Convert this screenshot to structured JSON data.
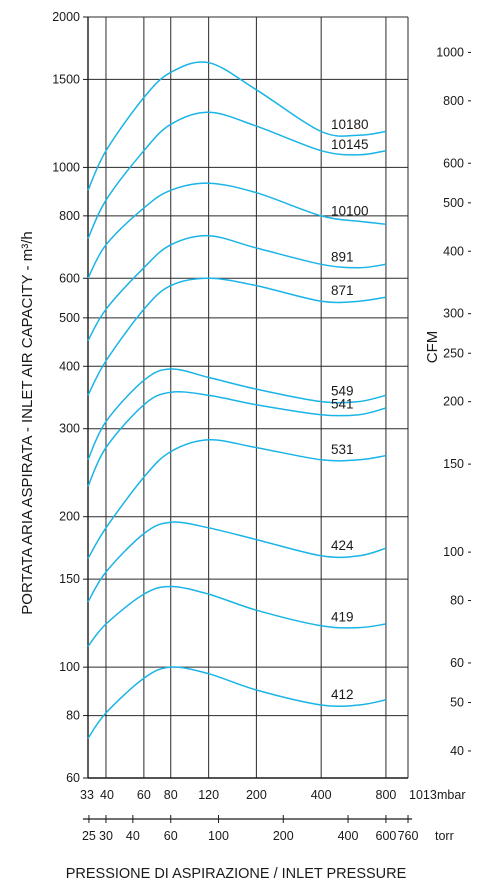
{
  "chart_data": {
    "type": "line",
    "title": "",
    "xlabel": "PRESSIONE DI ASPIRAZIONE / INLET PRESSURE",
    "ylabel": "PORTATA ARIA ASPIRATA - INLET AIR CAPACITY - m³/h",
    "ylabel_right": "CFM",
    "x_scale": "log",
    "y_scale": "log",
    "xlim_mbar": [
      33,
      1013
    ],
    "ylim_m3h": [
      60,
      2000
    ],
    "grid": true,
    "x_axis_mbar": {
      "unit_label": "mbar",
      "ticks": [
        {
          "value": 33,
          "label": "33"
        },
        {
          "value": 40,
          "label": "40"
        },
        {
          "value": 60,
          "label": "60"
        },
        {
          "value": 80,
          "label": "80"
        },
        {
          "value": 120,
          "label": "120"
        },
        {
          "value": 200,
          "label": "200"
        },
        {
          "value": 400,
          "label": "400"
        },
        {
          "value": 800,
          "label": "800"
        },
        {
          "value": 1013,
          "label": "1013"
        }
      ]
    },
    "x_axis_torr": {
      "unit_label": "torr",
      "ticks": [
        {
          "value": 25,
          "label": "25"
        },
        {
          "value": 30,
          "label": "30"
        },
        {
          "value": 40,
          "label": "40"
        },
        {
          "value": 60,
          "label": "60"
        },
        {
          "value": 100,
          "label": "100"
        },
        {
          "value": 200,
          "label": "200"
        },
        {
          "value": 400,
          "label": "400"
        },
        {
          "value": 600,
          "label": "600"
        },
        {
          "value": 760,
          "label": "760"
        }
      ]
    },
    "y_axis_m3h": {
      "ticks": [
        {
          "value": 60,
          "label": "60"
        },
        {
          "value": 80,
          "label": "80"
        },
        {
          "value": 100,
          "label": "100"
        },
        {
          "value": 150,
          "label": "150"
        },
        {
          "value": 200,
          "label": "200"
        },
        {
          "value": 300,
          "label": "300"
        },
        {
          "value": 400,
          "label": "400"
        },
        {
          "value": 500,
          "label": "500"
        },
        {
          "value": 600,
          "label": "600"
        },
        {
          "value": 800,
          "label": "800"
        },
        {
          "value": 1000,
          "label": "1000"
        },
        {
          "value": 1500,
          "label": "1500"
        },
        {
          "value": 2000,
          "label": "2000"
        }
      ]
    },
    "y_axis_cfm": {
      "ticks": [
        {
          "value": 40,
          "label": "40"
        },
        {
          "value": 50,
          "label": "50"
        },
        {
          "value": 60,
          "label": "60"
        },
        {
          "value": 80,
          "label": "80"
        },
        {
          "value": 100,
          "label": "100"
        },
        {
          "value": 150,
          "label": "150"
        },
        {
          "value": 200,
          "label": "200"
        },
        {
          "value": 250,
          "label": "250"
        },
        {
          "value": 300,
          "label": "300"
        },
        {
          "value": 400,
          "label": "400"
        },
        {
          "value": 500,
          "label": "500"
        },
        {
          "value": 600,
          "label": "600"
        },
        {
          "value": 800,
          "label": "800"
        },
        {
          "value": 1000,
          "label": "1000"
        }
      ]
    },
    "series_color": "#1ab4e6",
    "series": [
      {
        "name": "10180",
        "points": [
          [
            33,
            900
          ],
          [
            40,
            1080
          ],
          [
            60,
            1380
          ],
          [
            80,
            1550
          ],
          [
            120,
            1620
          ],
          [
            200,
            1430
          ],
          [
            400,
            1180
          ],
          [
            600,
            1160
          ],
          [
            800,
            1180
          ]
        ]
      },
      {
        "name": "10145",
        "points": [
          [
            33,
            720
          ],
          [
            40,
            860
          ],
          [
            60,
            1080
          ],
          [
            80,
            1220
          ],
          [
            120,
            1290
          ],
          [
            200,
            1210
          ],
          [
            400,
            1080
          ],
          [
            600,
            1060
          ],
          [
            800,
            1080
          ]
        ]
      },
      {
        "name": "10100",
        "points": [
          [
            33,
            600
          ],
          [
            40,
            700
          ],
          [
            60,
            830
          ],
          [
            80,
            900
          ],
          [
            120,
            930
          ],
          [
            200,
            890
          ],
          [
            400,
            800
          ],
          [
            600,
            780
          ],
          [
            800,
            770
          ]
        ]
      },
      {
        "name": "891",
        "points": [
          [
            33,
            450
          ],
          [
            40,
            520
          ],
          [
            60,
            630
          ],
          [
            80,
            700
          ],
          [
            120,
            730
          ],
          [
            200,
            690
          ],
          [
            400,
            640
          ],
          [
            600,
            630
          ],
          [
            800,
            640
          ]
        ]
      },
      {
        "name": "871",
        "points": [
          [
            33,
            350
          ],
          [
            40,
            410
          ],
          [
            60,
            520
          ],
          [
            80,
            580
          ],
          [
            120,
            600
          ],
          [
            200,
            580
          ],
          [
            400,
            540
          ],
          [
            600,
            540
          ],
          [
            800,
            550
          ]
        ]
      },
      {
        "name": "549",
        "points": [
          [
            33,
            260
          ],
          [
            40,
            310
          ],
          [
            60,
            375
          ],
          [
            80,
            395
          ],
          [
            120,
            380
          ],
          [
            200,
            360
          ],
          [
            400,
            340
          ],
          [
            600,
            340
          ],
          [
            800,
            350
          ]
        ]
      },
      {
        "name": "541",
        "points": [
          [
            33,
            230
          ],
          [
            40,
            275
          ],
          [
            60,
            335
          ],
          [
            80,
            355
          ],
          [
            120,
            350
          ],
          [
            200,
            335
          ],
          [
            400,
            320
          ],
          [
            600,
            320
          ],
          [
            800,
            330
          ]
        ]
      },
      {
        "name": "531",
        "points": [
          [
            33,
            165
          ],
          [
            40,
            190
          ],
          [
            60,
            240
          ],
          [
            80,
            270
          ],
          [
            120,
            285
          ],
          [
            200,
            275
          ],
          [
            400,
            260
          ],
          [
            600,
            260
          ],
          [
            800,
            265
          ]
        ]
      },
      {
        "name": "424",
        "points": [
          [
            33,
            135
          ],
          [
            40,
            155
          ],
          [
            60,
            185
          ],
          [
            80,
            195
          ],
          [
            120,
            190
          ],
          [
            200,
            180
          ],
          [
            400,
            167
          ],
          [
            600,
            167
          ],
          [
            800,
            173
          ]
        ]
      },
      {
        "name": "419",
        "points": [
          [
            33,
            110
          ],
          [
            40,
            122
          ],
          [
            60,
            140
          ],
          [
            80,
            145
          ],
          [
            120,
            140
          ],
          [
            200,
            130
          ],
          [
            400,
            121
          ],
          [
            600,
            120
          ],
          [
            800,
            122
          ]
        ]
      },
      {
        "name": "412",
        "points": [
          [
            33,
            72
          ],
          [
            40,
            81
          ],
          [
            60,
            95
          ],
          [
            80,
            100
          ],
          [
            120,
            97
          ],
          [
            200,
            90
          ],
          [
            400,
            84
          ],
          [
            600,
            84
          ],
          [
            800,
            86
          ]
        ]
      }
    ]
  }
}
